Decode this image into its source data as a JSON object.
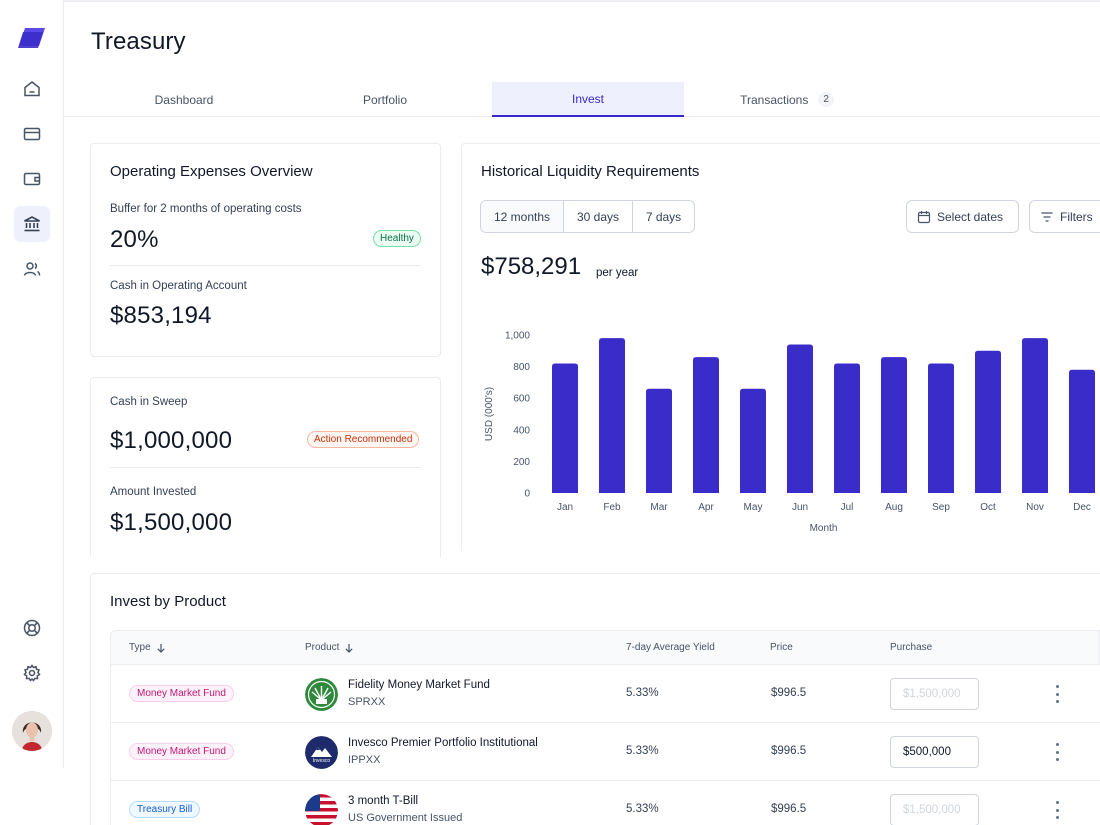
{
  "app": {
    "title": "Treasury"
  },
  "sidebar": {
    "items": [
      {
        "icon": "home-icon"
      },
      {
        "icon": "credit-card-icon"
      },
      {
        "icon": "wallet-icon"
      },
      {
        "icon": "bank-icon",
        "active": true
      },
      {
        "icon": "users-icon"
      }
    ],
    "bottom": [
      {
        "icon": "life-buoy-icon"
      },
      {
        "icon": "gear-icon"
      }
    ]
  },
  "tabs": [
    {
      "label": "Dashboard"
    },
    {
      "label": "Portfolio"
    },
    {
      "label": "Invest",
      "active": true
    },
    {
      "label": "Transactions",
      "count": "2"
    }
  ],
  "opex": {
    "title": "Operating Expenses Overview",
    "buffer_label": "Buffer for 2 months of operating costs",
    "buffer_value": "20%",
    "buffer_badge": "Healthy",
    "cash_label": "Cash in Operating Account",
    "cash_value": "$853,194"
  },
  "sweep": {
    "cash_label": "Cash in Sweep",
    "cash_value": "$1,000,000",
    "badge": "Action Recommended",
    "invested_label": "Amount Invested",
    "invested_value": "$1,500,000"
  },
  "liquidity": {
    "title": "Historical Liquidity Requirements",
    "ranges": [
      "12 months",
      "30 days",
      "7 days"
    ],
    "active_range": "12 months",
    "select_dates": "Select dates",
    "filters": "Filters",
    "total": "$758,291",
    "total_unit": "per year"
  },
  "chart_data": {
    "type": "bar",
    "categories": [
      "Jan",
      "Feb",
      "Mar",
      "Apr",
      "May",
      "Jun",
      "Jul",
      "Aug",
      "Sep",
      "Oct",
      "Nov",
      "Dec"
    ],
    "values": [
      820,
      980,
      660,
      860,
      660,
      940,
      820,
      860,
      820,
      900,
      980,
      780
    ],
    "xlabel": "Month",
    "ylabel": "USD (000's)",
    "ylim": [
      0,
      1000
    ],
    "yticks": [
      "0",
      "200",
      "400",
      "600",
      "800",
      "1,000"
    ],
    "color": "#3a2cc8",
    "grid": false
  },
  "invest": {
    "title": "Invest by Product",
    "headers": {
      "type": "Type",
      "product": "Product",
      "yield": "7-day Average Yield",
      "price": "Price",
      "purchase": "Purchase"
    },
    "rows": [
      {
        "type": "Money Market Fund",
        "type_kind": "mm",
        "name": "Fidelity Money Market Fund",
        "ticker": "SPRXX",
        "logo": "fidelity-logo",
        "yield": "5.33%",
        "price": "$996.5",
        "purchase_value": "",
        "purchase_placeholder": "$1,500,000"
      },
      {
        "type": "Money Market Fund",
        "type_kind": "mm",
        "name": "Invesco Premier Portfolio Institutional",
        "ticker": "IPPXX",
        "logo": "invesco-logo",
        "yield": "5.33%",
        "price": "$996.5",
        "purchase_value": "$500,000",
        "purchase_placeholder": "$1,500,000"
      },
      {
        "type": "Treasury Bill",
        "type_kind": "tb",
        "name": "3 month T-Bill",
        "ticker": "US Government Issued",
        "logo": "us-flag-logo",
        "yield": "5.33%",
        "price": "$996.5",
        "purchase_value": "",
        "purchase_placeholder": "$1,500,000"
      }
    ]
  }
}
